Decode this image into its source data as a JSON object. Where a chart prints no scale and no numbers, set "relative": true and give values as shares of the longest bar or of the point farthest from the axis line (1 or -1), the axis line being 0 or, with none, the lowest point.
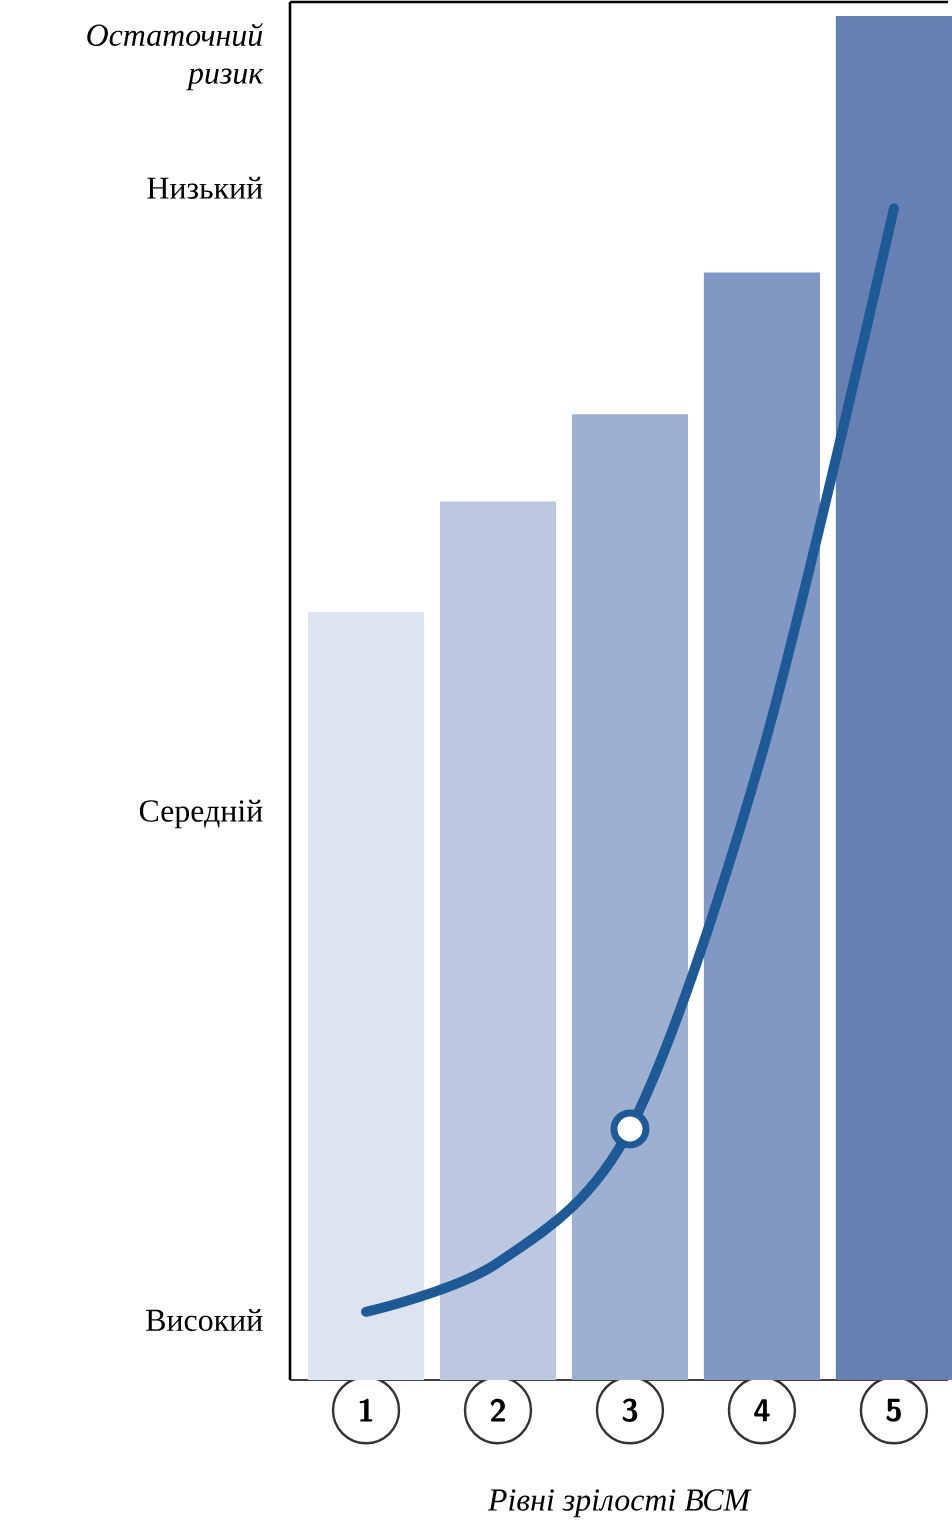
{
  "chart_data": {
    "type": "bar",
    "relative": true,
    "ylabel": "Остаточний ризик",
    "xlabel": "Рівні зрілості ВСМ",
    "categories": [
      "1",
      "2",
      "3",
      "4",
      "5"
    ],
    "annotations": [
      "Високий",
      "Середній",
      "Низький"
    ],
    "series": [
      {
        "values": [
          0.563,
          0.644,
          0.708,
          0.812,
          1.0
        ],
        "colors": [
          "#dde3ef",
          "#bcc8e0",
          "#9eb0d1",
          "#8098c3",
          "#6680b3"
        ]
      },
      {
        "type": "line",
        "color": "#1f5a96",
        "values": [
          0.05,
          0.086,
          0.184,
          0.459,
          0.859
        ]
      },
      {
        "type": "scatter",
        "color": "#1f5a96",
        "marker": "circle",
        "values": [
          null,
          null,
          0.184,
          null,
          null
        ]
      }
    ]
  }
}
